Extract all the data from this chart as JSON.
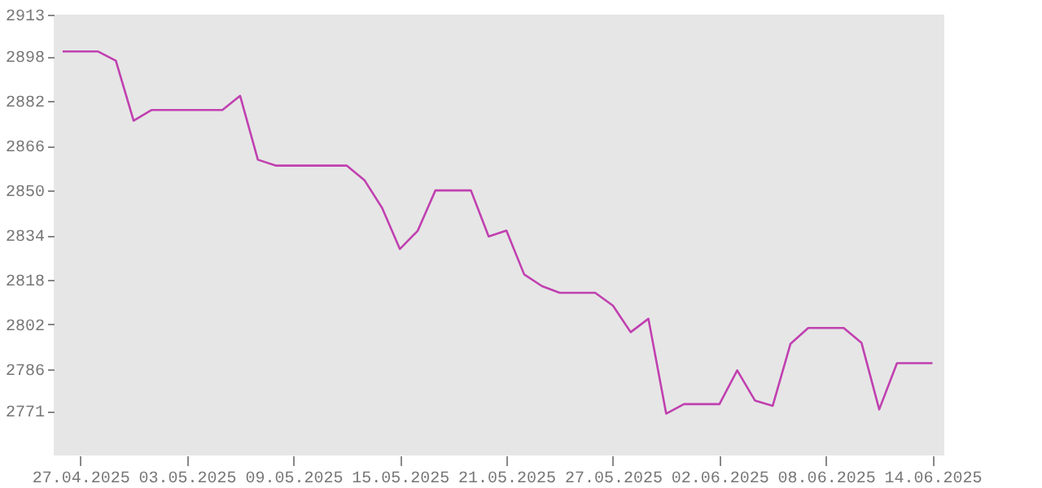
{
  "chart_data": {
    "type": "line",
    "x": [
      "2025-04-26",
      "2025-04-27",
      "2025-04-28",
      "2025-04-29",
      "2025-04-30",
      "2025-05-01",
      "2025-05-02",
      "2025-05-03",
      "2025-05-04",
      "2025-05-05",
      "2025-05-06",
      "2025-05-07",
      "2025-05-08",
      "2025-05-09",
      "2025-05-10",
      "2025-05-11",
      "2025-05-12",
      "2025-05-13",
      "2025-05-14",
      "2025-05-15",
      "2025-05-16",
      "2025-05-17",
      "2025-05-18",
      "2025-05-19",
      "2025-05-20",
      "2025-05-21",
      "2025-05-22",
      "2025-05-23",
      "2025-05-24",
      "2025-05-25",
      "2025-05-26",
      "2025-05-27",
      "2025-05-28",
      "2025-05-29",
      "2025-05-30",
      "2025-05-31",
      "2025-06-01",
      "2025-06-02",
      "2025-06-03",
      "2025-06-04",
      "2025-06-05",
      "2025-06-06",
      "2025-06-07",
      "2025-06-08",
      "2025-06-09",
      "2025-06-10",
      "2025-06-11",
      "2025-06-12",
      "2025-06-13",
      "2025-06-14"
    ],
    "series": [
      {
        "color": "#c040b0",
        "values": [
          2899.8,
          2899.8,
          2899.8,
          2896.5,
          2875.0,
          2878.8,
          2878.8,
          2878.8,
          2878.8,
          2878.8,
          2883.9,
          2861.0,
          2858.9,
          2858.9,
          2858.9,
          2858.9,
          2858.9,
          2853.7,
          2843.7,
          2829.0,
          2835.5,
          2850.0,
          2850.0,
          2850.0,
          2833.5,
          2835.6,
          2819.9,
          2815.7,
          2813.3,
          2813.3,
          2813.3,
          2808.7,
          2799.2,
          2804.0,
          2770.0,
          2773.4,
          2773.4,
          2773.4,
          2785.5,
          2774.7,
          2772.8,
          2795.0,
          2800.7,
          2800.7,
          2800.7,
          2795.4,
          2771.5,
          2788.1,
          2788.1,
          2788.1
        ]
      }
    ],
    "xlim": [
      "2025-04-25T12:00",
      "2025-06-14T16:00"
    ],
    "xticks": [
      {
        "value": "2025-04-27",
        "label": "27.04.2025"
      },
      {
        "value": "2025-05-03",
        "label": "03.05.2025"
      },
      {
        "value": "2025-05-09",
        "label": "09.05.2025"
      },
      {
        "value": "2025-05-15",
        "label": "15.05.2025"
      },
      {
        "value": "2025-05-21",
        "label": "21.05.2025"
      },
      {
        "value": "2025-05-27",
        "label": "27.05.2025"
      },
      {
        "value": "2025-06-02",
        "label": "02.06.2025"
      },
      {
        "value": "2025-06-08",
        "label": "08.06.2025"
      },
      {
        "value": "2025-06-14",
        "label": "14.06.2025"
      }
    ],
    "ylim": [
      2755,
      2913
    ],
    "yticks": [
      2913,
      2898,
      2882,
      2866,
      2850,
      2834,
      2818,
      2802,
      2786,
      2771
    ],
    "line_style": "solid"
  }
}
